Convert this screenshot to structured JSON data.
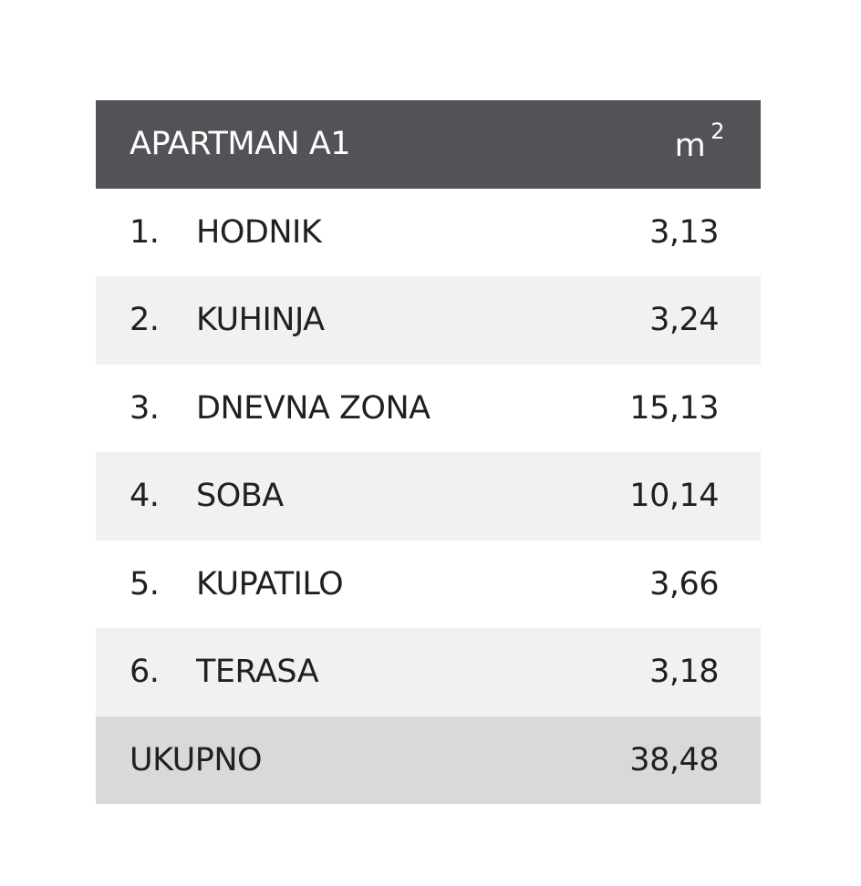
{
  "header": {
    "title": "APARTMAN A1",
    "unit": "m",
    "unit_exponent": "2"
  },
  "table": {
    "rows": [
      [
        "1.",
        "HODNIK",
        "3,13"
      ],
      [
        "2.",
        "KUHINJA",
        "3,24"
      ],
      [
        "3.",
        "DNEVNA ZONA",
        "15,13"
      ],
      [
        "4.",
        "SOBA",
        "10,14"
      ],
      [
        "5.",
        "KUPATILO",
        "3,66"
      ],
      [
        "6.",
        "TERASA",
        "3,18"
      ]
    ]
  },
  "total": {
    "label": "UKUPNO",
    "value": "38,48"
  }
}
